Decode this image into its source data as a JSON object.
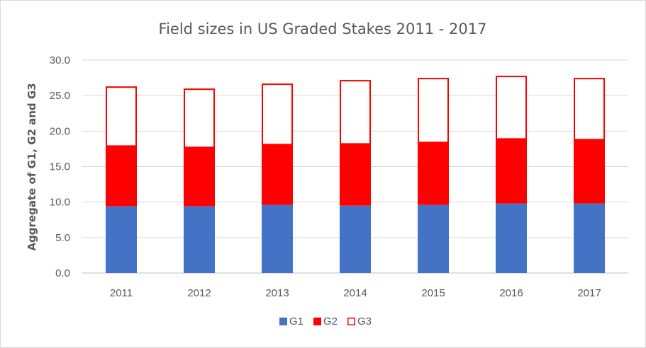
{
  "chart_data": {
    "type": "bar",
    "stacked": true,
    "title": "Field sizes in US Graded Stakes 2011 - 2017",
    "xlabel": "",
    "ylabel": "Aggregate of G1, G2 and G3",
    "ylim": [
      0,
      30
    ],
    "yticks": [
      "0.0",
      "5.0",
      "10.0",
      "15.0",
      "20.0",
      "25.0",
      "30.0"
    ],
    "categories": [
      "2011",
      "2012",
      "2013",
      "2014",
      "2015",
      "2016",
      "2017"
    ],
    "grid": true,
    "legend_position": "bottom",
    "series": [
      {
        "name": "G1",
        "values": [
          9.4,
          9.4,
          9.6,
          9.5,
          9.6,
          9.8,
          9.8
        ],
        "color": "#4472c4",
        "fill": "solid"
      },
      {
        "name": "G2",
        "values": [
          8.5,
          8.3,
          8.5,
          8.7,
          8.8,
          9.1,
          9.0
        ],
        "color": "#ff0000",
        "fill": "solid"
      },
      {
        "name": "G3",
        "values": [
          8.4,
          8.3,
          8.6,
          9.0,
          9.1,
          8.9,
          8.7
        ],
        "color": "#ff0000",
        "fill": "outline"
      }
    ]
  }
}
